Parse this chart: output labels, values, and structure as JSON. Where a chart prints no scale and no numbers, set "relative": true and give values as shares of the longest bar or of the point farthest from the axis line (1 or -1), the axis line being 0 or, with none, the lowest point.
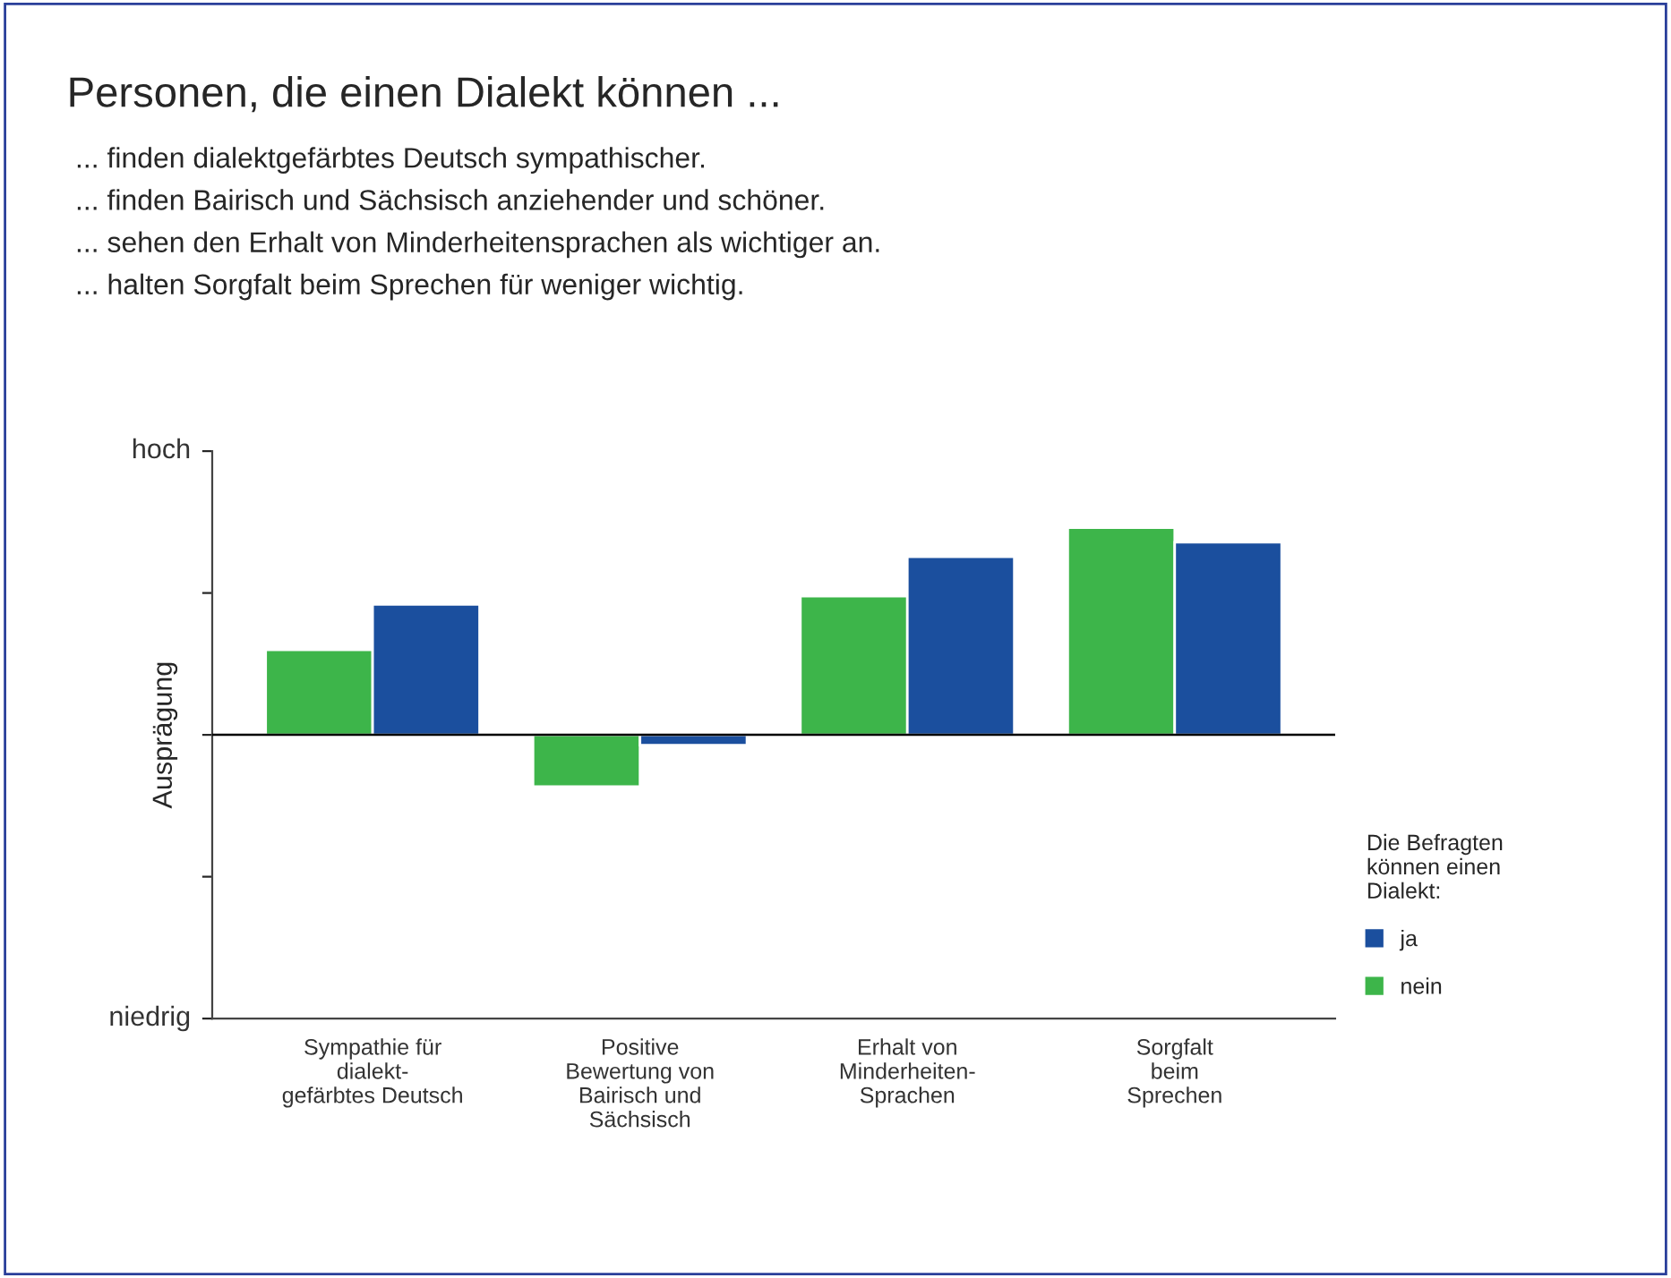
{
  "chart_data": {
    "type": "bar",
    "title": "Personen, die einen Dialekt können ...",
    "subtitle": "... finden dialektgefärbtes Deutsch sympathischer.\n... finden Bairisch und Sächsisch anziehender und schöner.\n... sehen den Erhalt von Minderheitensprachen als wichtiger an.\n... halten Sorgfalt beim Sprechen für weniger wichtig.",
    "ylabel": "Ausprägung",
    "annotations": [
      "hoch",
      "niedrig"
    ],
    "categories": [
      "Sympathie für\ndialekt-\ngefärbtes Deutsch",
      "Positive\nBewertung von\nBairisch und\nSächsisch",
      "Erhalt von\nMinderheiten-\nSprachen",
      "Sorgfalt\nbeim\nSprechen"
    ],
    "relative": true,
    "legend_title": "Die Befragten\nkönnen einen\nDialekt:",
    "legend": "bottom right",
    "grid": false,
    "series": [
      {
        "name": "nein",
        "color": "#3db54a",
        "values": [
          0.41,
          -0.25,
          0.67,
          1.0
        ]
      },
      {
        "name": "ja",
        "color": "#1b4f9e",
        "values": [
          0.63,
          -0.05,
          0.86,
          0.93
        ]
      }
    ]
  }
}
